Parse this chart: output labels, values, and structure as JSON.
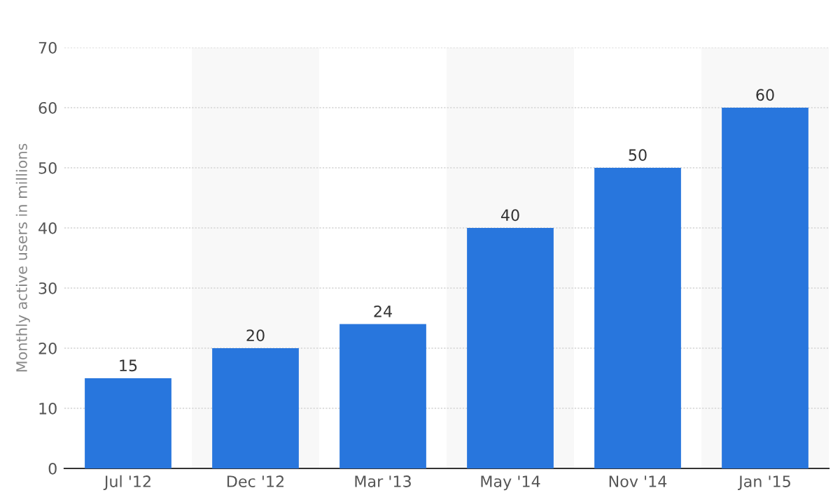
{
  "chart_data": {
    "type": "bar",
    "ylabel": "Monthly active users in millions",
    "categories": [
      "Jul '12",
      "Dec '12",
      "Mar '13",
      "May '14",
      "Nov '14",
      "Jan '15"
    ],
    "values": [
      15,
      20,
      24,
      40,
      50,
      60
    ],
    "color": "#2876dd",
    "ylim": [
      0,
      70
    ],
    "yticks": [
      0,
      10,
      20,
      30,
      40,
      50,
      60,
      70
    ],
    "grid": "y",
    "data_labels": true,
    "bands": [
      {
        "axis": "x",
        "from": "Dec '12",
        "to": "Dec '12",
        "color": "#f8f8f8"
      },
      {
        "axis": "x",
        "from": "May '14",
        "to": "May '14",
        "color": "#f8f8f8"
      },
      {
        "axis": "x",
        "from": "Jan '15",
        "to": "Jan '15",
        "color": "#f8f8f8"
      }
    ]
  }
}
